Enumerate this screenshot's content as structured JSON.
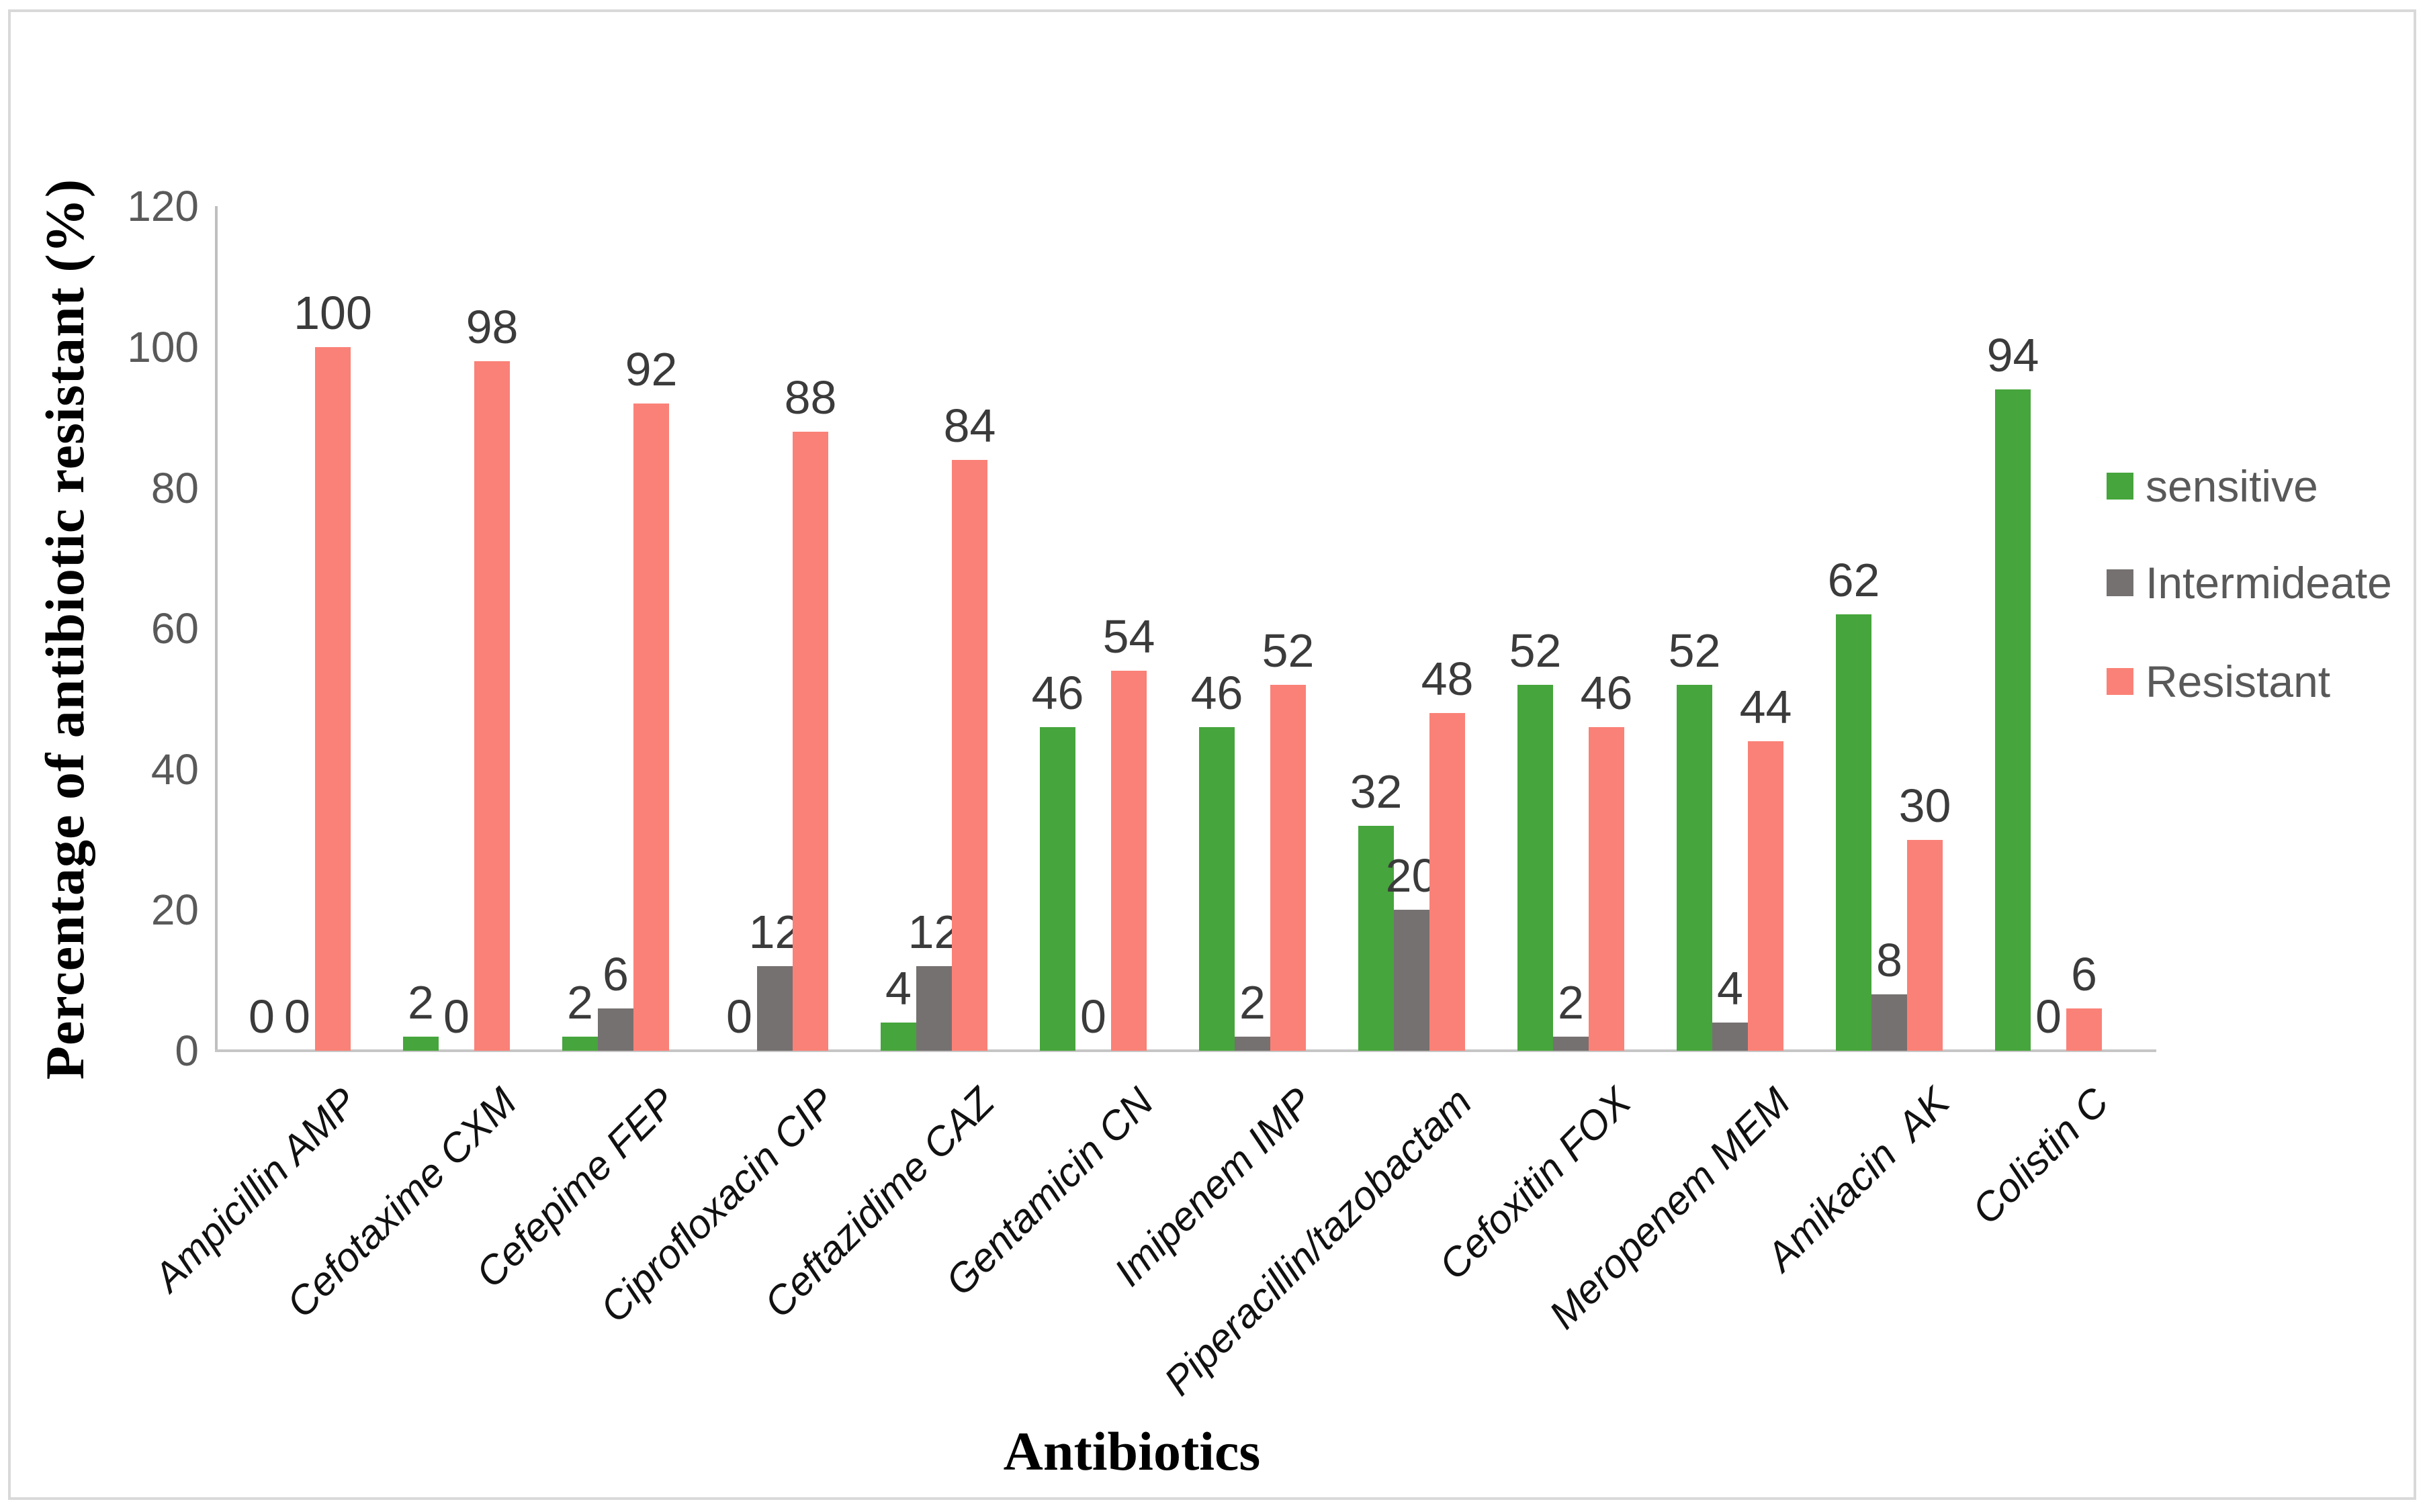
{
  "chart_data": {
    "type": "bar",
    "title": "",
    "xlabel": "Antibiotics",
    "ylabel": "Percentage of antibiotic resistant (%)",
    "ylim": [
      0,
      120
    ],
    "ytick_step": 20,
    "yticks": [
      0,
      20,
      40,
      60,
      80,
      100,
      120
    ],
    "grid": false,
    "legend_position": "right",
    "categories": [
      "Ampicillin AMP",
      "Cefotaxime CXM",
      "Cefepime FEP",
      "Ciprofloxacin CIP",
      "Ceftazidime CAZ",
      "Gentamicin CN",
      "Imipenem IMP",
      "Piperacillin/tazobactam",
      "Cefoxitin FOX",
      "Meropenem MEM",
      "Amikacin  AK",
      "Colistin C"
    ],
    "series": [
      {
        "name": "sensitive",
        "color": "#46a53c",
        "values": [
          0,
          2,
          2,
          0,
          4,
          46,
          46,
          32,
          52,
          52,
          62,
          94
        ]
      },
      {
        "name": "Intermideate",
        "color": "#767171",
        "values": [
          0,
          0,
          6,
          12,
          12,
          0,
          2,
          20,
          2,
          4,
          8,
          0
        ]
      },
      {
        "name": "Resistant",
        "color": "#fa8177",
        "values": [
          100,
          98,
          92,
          88,
          84,
          54,
          52,
          48,
          46,
          44,
          30,
          6
        ]
      }
    ]
  },
  "colors": {
    "axis_line": "#bfbfbf",
    "tick_label": "#595959",
    "value_label": "#3b3b3b",
    "frame_border": "#d9d9d9"
  }
}
